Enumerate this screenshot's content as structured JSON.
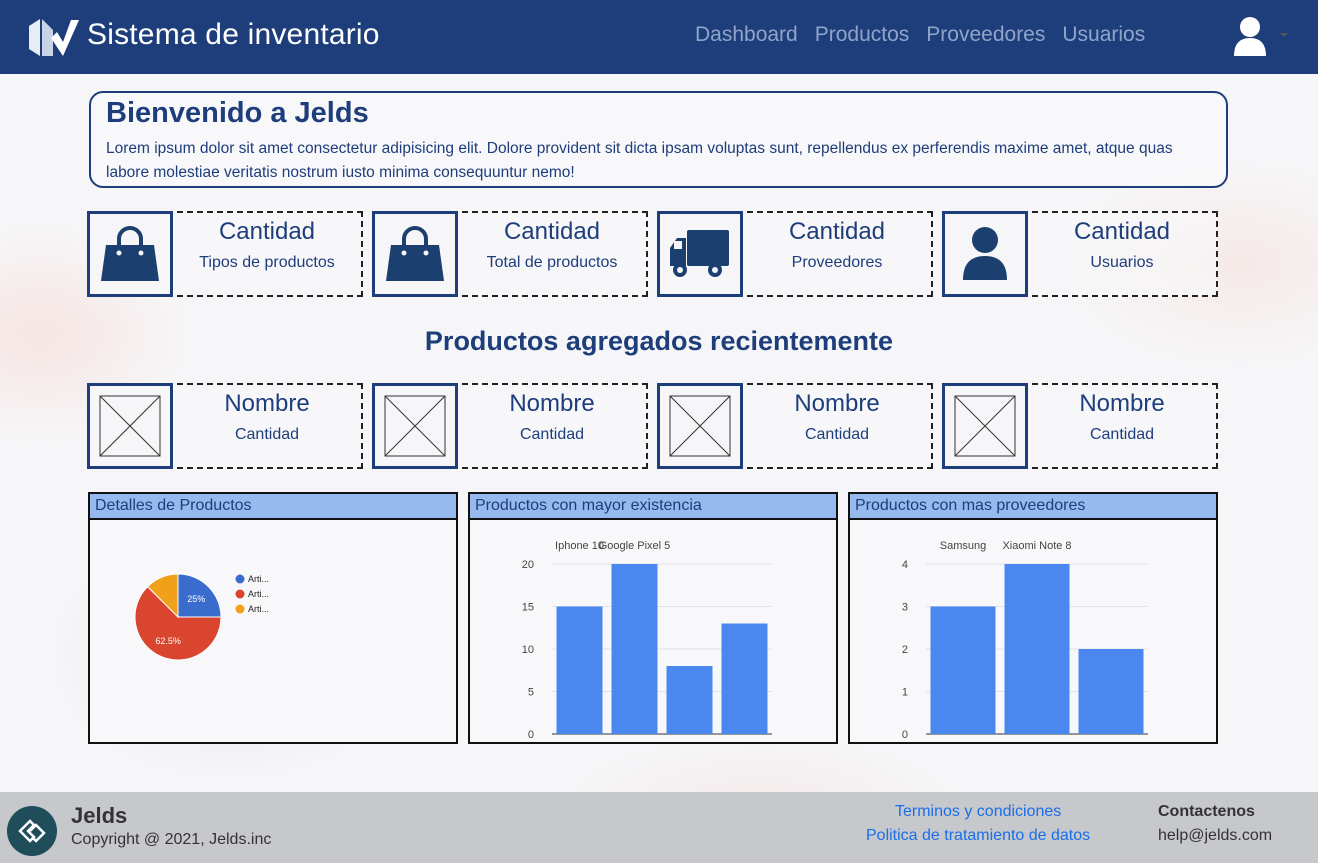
{
  "header": {
    "app_title": "Sistema de inventario",
    "nav": [
      "Dashboard",
      "Productos",
      "Proveedores",
      "Usuarios"
    ],
    "accent_color": "#1e3d7b"
  },
  "welcome": {
    "title": "Bienvenido a Jelds",
    "text": "Lorem ipsum dolor sit amet consectetur adipisicing elit. Dolore provident sit dicta ipsam voluptas sunt, repellendus ex perferendis maxime amet, atque quas labore molestiae veritatis nostrum iusto minima consequuntur nemo!"
  },
  "stats": [
    {
      "title": "Cantidad",
      "subtitle": "Tipos de productos",
      "icon": "shopping-bag-icon"
    },
    {
      "title": "Cantidad",
      "subtitle": "Total de productos",
      "icon": "shopping-bag-icon"
    },
    {
      "title": "Cantidad",
      "subtitle": "Proveedores",
      "icon": "truck-icon"
    },
    {
      "title": "Cantidad",
      "subtitle": "Usuarios",
      "icon": "user-icon"
    }
  ],
  "recent": {
    "title": "Productos agregados recientemente",
    "items": [
      {
        "name": "Nombre",
        "qty": "Cantidad",
        "icon": "image-placeholder-icon"
      },
      {
        "name": "Nombre",
        "qty": "Cantidad",
        "icon": "image-placeholder-icon"
      },
      {
        "name": "Nombre",
        "qty": "Cantidad",
        "icon": "image-placeholder-icon"
      },
      {
        "name": "Nombre",
        "qty": "Cantidad",
        "icon": "image-placeholder-icon"
      }
    ]
  },
  "chart_data": [
    {
      "type": "pie",
      "title": "Detalles de Productos",
      "legend": [
        "Arti...",
        "Arti...",
        "Arti..."
      ],
      "legend_position": "right",
      "values": [
        25,
        62.5,
        12.5
      ],
      "labels": [
        "25%",
        "62.5%",
        ""
      ],
      "colors": [
        "#3a6ccd",
        "#d9452f",
        "#f0a01a"
      ]
    },
    {
      "type": "bar",
      "title": "Productos con mayor existencia",
      "categories": [
        "Iphone 10",
        "Google Pixel 5",
        "",
        ""
      ],
      "values": [
        15,
        20,
        8,
        13
      ],
      "ylim": [
        0,
        20
      ],
      "yticks": [
        "0",
        "5",
        "10",
        "15",
        "20"
      ],
      "color": "#4a87ee"
    },
    {
      "type": "bar",
      "title": "Productos con mas proveedores",
      "categories": [
        "Samsung",
        "Xiaomi Note 8",
        ""
      ],
      "values": [
        3,
        4,
        2
      ],
      "ylim": [
        0,
        4
      ],
      "yticks": [
        "0",
        "1",
        "2",
        "3",
        "4"
      ],
      "color": "#4a87ee"
    }
  ],
  "footer": {
    "brand": "Jelds",
    "copyright": "Copyright @ 2021, Jelds.inc",
    "links": [
      "Terminos y condiciones",
      "Politica de tratamiento de datos"
    ],
    "contact_title": "Contactenos",
    "contact_email": "help@jelds.com"
  }
}
